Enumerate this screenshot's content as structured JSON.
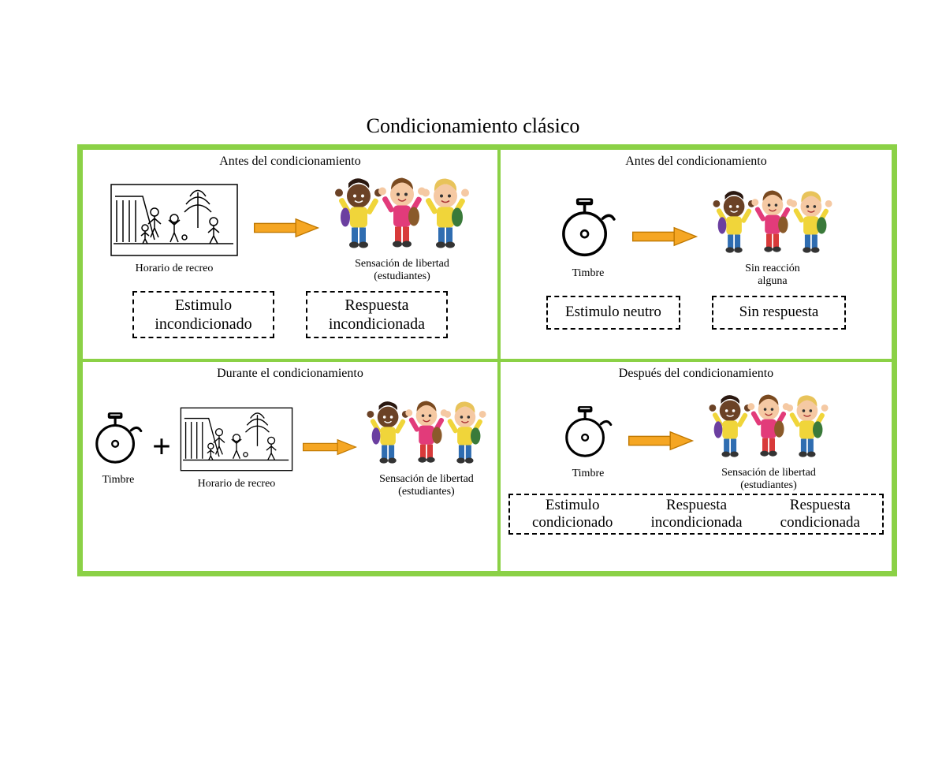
{
  "title": "Condicionamiento clásico",
  "colors": {
    "grid_border": "#8bd146",
    "arrow_fill": "#f5a623",
    "arrow_stroke": "#c07800",
    "kid1_shirt": "#f0d53a",
    "kid1_skin": "#6b4226",
    "kid2_shirt": "#e23b7a",
    "kid2_skin": "#f5c9a3",
    "kid3_shirt": "#f0d53a",
    "kid3_skin": "#f5c9a3",
    "pants_blue": "#2f6db1",
    "pants_red": "#d83a3a",
    "backpack": "#6b3fa0"
  },
  "panels": {
    "p1": {
      "title": "Antes del condicionamiento",
      "left_label": "Horario de recreo",
      "right_label": "Sensación de libertad\n(estudiantes)",
      "box_left": "Estimulo\nincondicionado",
      "box_right": "Respuesta\nincondicionada"
    },
    "p2": {
      "title": "Antes del condicionamiento",
      "left_label": "Timbre",
      "right_label": "Sin reacción\nalguna",
      "box_left": "Estimulo neutro",
      "box_right": "Sin respuesta"
    },
    "p3": {
      "title": "Durante el condicionamiento",
      "a_label": "Timbre",
      "b_label": "Horario de recreo",
      "c_label": "Sensación de libertad\n(estudiantes)"
    },
    "p4": {
      "title": "Después del condicionamiento",
      "left_label": "Timbre",
      "right_label": "Sensación de libertad\n(estudiantes)",
      "box_a": "Estimulo\ncondicionado",
      "box_b": "Respuesta\nincondicionada",
      "box_c": "Respuesta\ncondicionada"
    }
  }
}
